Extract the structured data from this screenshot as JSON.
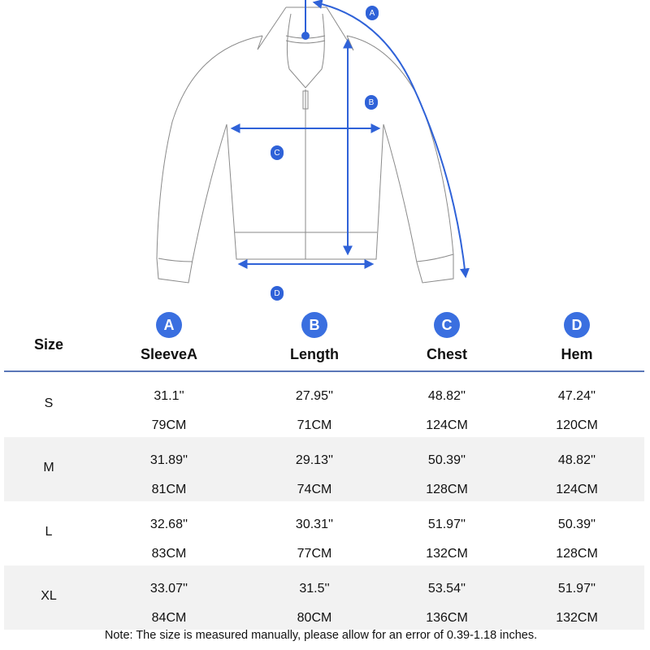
{
  "diagram": {
    "badges": [
      "A",
      "B",
      "C",
      "D"
    ],
    "accent_color": "#2f62d8"
  },
  "table": {
    "size_header": "Size",
    "columns": [
      {
        "badge": "A",
        "label": "SleeveA"
      },
      {
        "badge": "B",
        "label": "Length"
      },
      {
        "badge": "C",
        "label": "Chest"
      },
      {
        "badge": "D",
        "label": "Hem"
      }
    ],
    "rows": [
      {
        "size": "S",
        "inches": [
          "31.1''",
          "27.95''",
          "48.82''",
          "47.24''"
        ],
        "cm": [
          "79CM",
          "71CM",
          "124CM",
          "120CM"
        ]
      },
      {
        "size": "M",
        "inches": [
          "31.89''",
          "29.13''",
          "50.39''",
          "48.82''"
        ],
        "cm": [
          "81CM",
          "74CM",
          "128CM",
          "124CM"
        ]
      },
      {
        "size": "L",
        "inches": [
          "32.68''",
          "30.31''",
          "51.97''",
          "50.39''"
        ],
        "cm": [
          "83CM",
          "77CM",
          "132CM",
          "128CM"
        ]
      },
      {
        "size": "XL",
        "inches": [
          "33.07''",
          "31.5''",
          "53.54''",
          "51.97''"
        ],
        "cm": [
          "84CM",
          "80CM",
          "136CM",
          "132CM"
        ]
      }
    ]
  },
  "note": "Note: The size is measured manually, please allow for an error of 0.39-1.18 inches."
}
